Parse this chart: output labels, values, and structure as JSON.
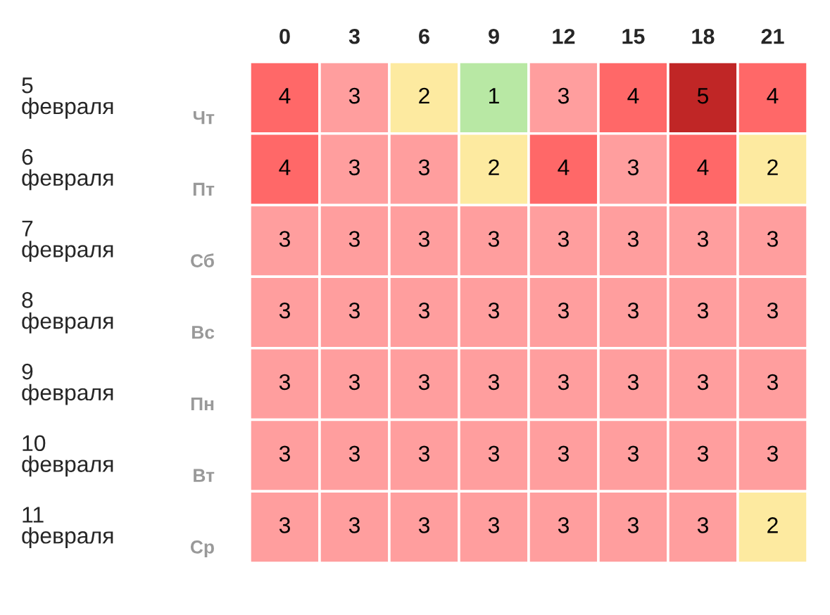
{
  "chart_data": {
    "type": "heatmap",
    "categories": [
      "0",
      "3",
      "6",
      "9",
      "12",
      "15",
      "18",
      "21"
    ],
    "y_categories": [
      "5\nфевраля",
      "6\nфевраля",
      "7\nфевраля",
      "8\nфевраля",
      "9\nфевраля",
      "10\nфевраля",
      "11\nфевраля"
    ],
    "y2_categories": [
      "Чт",
      "Пт",
      "Сб",
      "Вс",
      "Пн",
      "Вт",
      "Ср"
    ],
    "cells": [
      [
        4,
        3,
        2,
        1,
        3,
        4,
        5,
        4
      ],
      [
        4,
        3,
        3,
        2,
        4,
        3,
        4,
        2
      ],
      [
        3,
        3,
        3,
        3,
        3,
        3,
        3,
        3
      ],
      [
        3,
        3,
        3,
        3,
        3,
        3,
        3,
        3
      ],
      [
        3,
        3,
        3,
        3,
        3,
        3,
        3,
        3
      ],
      [
        3,
        3,
        3,
        3,
        3,
        3,
        3,
        3
      ],
      [
        3,
        3,
        3,
        3,
        3,
        3,
        3,
        2
      ]
    ],
    "colors": [
      "#b8e8a4",
      "#fdeaa0",
      "#ff9e9e",
      "#ff6868",
      "#c02626"
    ],
    "data_labels": true
  }
}
